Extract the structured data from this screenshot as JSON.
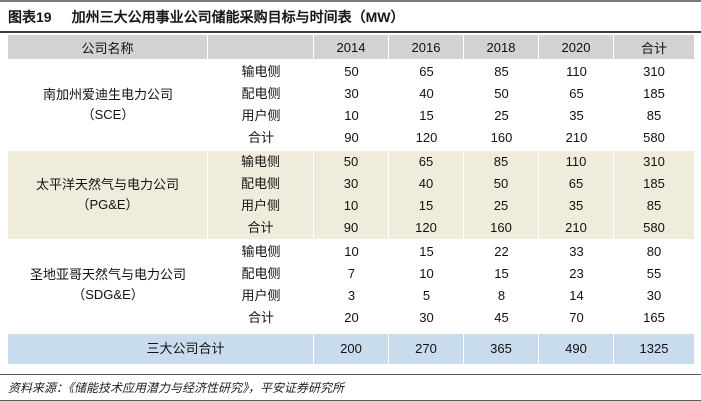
{
  "figure_label": "图表19",
  "chart_data": {
    "type": "table",
    "title": "加州三大公用事业公司储能采购目标与时间表（MW）",
    "name_header": "公司名称",
    "year_columns": [
      "2014",
      "2016",
      "2018",
      "2020",
      "合计"
    ],
    "groups": [
      {
        "company_line1": "南加州爱迪生电力公司",
        "company_line2": "（SCE）",
        "highlight": false,
        "rows": [
          {
            "category": "输电侧",
            "values": [
              50,
              65,
              85,
              110,
              310
            ]
          },
          {
            "category": "配电侧",
            "values": [
              30,
              40,
              50,
              65,
              185
            ]
          },
          {
            "category": "用户侧",
            "values": [
              10,
              15,
              25,
              35,
              85
            ]
          },
          {
            "category": "合计",
            "values": [
              90,
              120,
              160,
              210,
              580
            ]
          }
        ]
      },
      {
        "company_line1": "太平洋天然气与电力公司",
        "company_line2": "（PG&E）",
        "highlight": true,
        "rows": [
          {
            "category": "输电侧",
            "values": [
              50,
              65,
              85,
              110,
              310
            ]
          },
          {
            "category": "配电侧",
            "values": [
              30,
              40,
              50,
              65,
              185
            ]
          },
          {
            "category": "用户侧",
            "values": [
              10,
              15,
              25,
              35,
              85
            ]
          },
          {
            "category": "合计",
            "values": [
              90,
              120,
              160,
              210,
              580
            ]
          }
        ]
      },
      {
        "company_line1": "圣地亚哥天然气与电力公司",
        "company_line2": "（SDG&E）",
        "highlight": false,
        "rows": [
          {
            "category": "输电侧",
            "values": [
              10,
              15,
              22,
              33,
              80
            ]
          },
          {
            "category": "配电侧",
            "values": [
              7,
              10,
              15,
              23,
              55
            ]
          },
          {
            "category": "用户侧",
            "values": [
              3,
              5,
              8,
              14,
              30
            ]
          },
          {
            "category": "合计",
            "values": [
              20,
              30,
              45,
              70,
              165
            ]
          }
        ]
      }
    ],
    "total_row": {
      "label": "三大公司合计",
      "values": [
        200,
        270,
        365,
        490,
        1325
      ]
    }
  },
  "footer": {
    "source": "资料来源：《储能技术应用潜力与经济性研究》，平安证券研究所"
  },
  "colors": {
    "header_bg": "#d2d2d2",
    "highlight_bg": "#f0ecdb",
    "grand_total_bg": "#c9dcee",
    "rule_dark": "#3f3f3f"
  }
}
